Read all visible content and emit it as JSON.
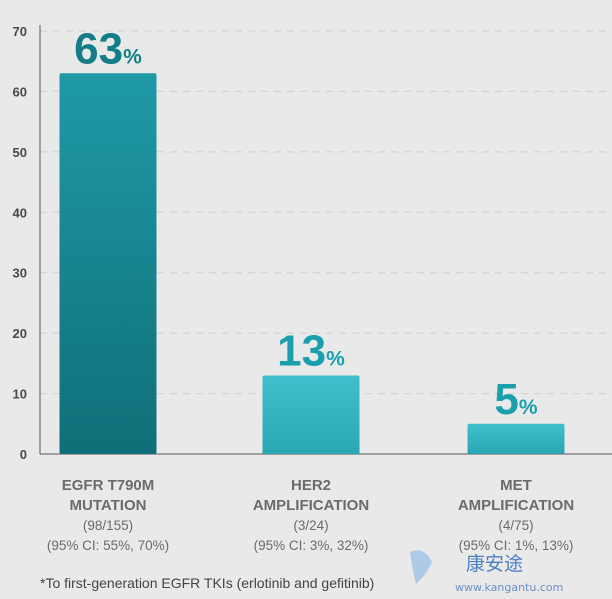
{
  "colors": {
    "background": "#e9e9e9",
    "bar_top": "#1f9aa6",
    "bar_bottom": "#0f6f78",
    "bar_light_top": "#3fbfcc",
    "bar_light_bottom": "#2aa7b4",
    "label_dark": "#127e87",
    "label_light": "#1aa0ad",
    "grid": "#cfcfcf",
    "axis": "#555555"
  },
  "chart_data": {
    "type": "bar",
    "categories": [
      "EGFR T790M MUTATION",
      "HER2 AMPLIFICATION",
      "MET AMPLIFICATION"
    ],
    "category_lines": [
      [
        "EGFR T790M",
        "MUTATION"
      ],
      [
        "HER2",
        "AMPLIFICATION"
      ],
      [
        "MET",
        "AMPLIFICATION"
      ]
    ],
    "counts": [
      "(98/155)",
      "(3/24)",
      "(4/75)"
    ],
    "ci": [
      "(95% CI: 55%, 70%)",
      "(95% CI: 3%, 32%)",
      "(95% CI: 1%, 13%)"
    ],
    "values": [
      63,
      13,
      5
    ],
    "value_labels": [
      "63",
      "13",
      "5"
    ],
    "value_unit": "%",
    "ylim": [
      0,
      70
    ],
    "yticks": [
      0,
      10,
      20,
      30,
      40,
      50,
      60,
      70
    ],
    "grid": true,
    "title": "",
    "xlabel": "",
    "ylabel": ""
  },
  "footnote": "*To first-generation EGFR TKIs (erlotinib and gefitinib)",
  "watermark": {
    "text": "康安途",
    "url": "www.kangantu.com"
  }
}
